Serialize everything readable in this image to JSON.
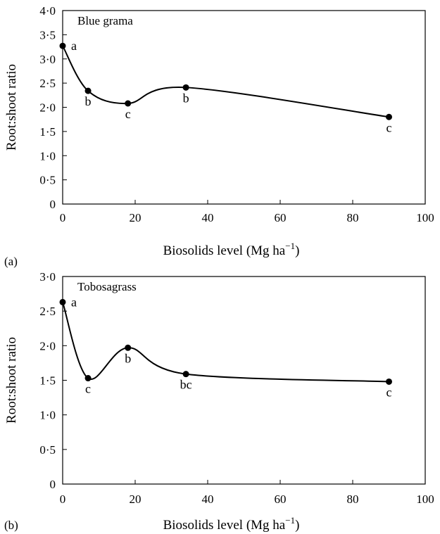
{
  "chart_data": [
    {
      "type": "line",
      "panel_label": "(a)",
      "title": "Blue grama",
      "xlabel": "Biosolids level (Mg ha",
      "xlabel_sup": "−1",
      "xlabel_end": ")",
      "ylabel": "Root:shoot ratio",
      "xlim": [
        0,
        100
      ],
      "ylim": [
        0,
        4
      ],
      "xticks": [
        0,
        20,
        40,
        60,
        80,
        100
      ],
      "xtick_labels": [
        "0",
        "20",
        "40",
        "60",
        "80",
        "100"
      ],
      "yticks": [
        0,
        0.5,
        1,
        1.5,
        2,
        2.5,
        3,
        3.5,
        4
      ],
      "ytick_labels": [
        "0",
        "0·5",
        "1·0",
        "1·5",
        "2·0",
        "2·5",
        "3·0",
        "3·5",
        "4·0"
      ],
      "grid": false,
      "legend": "none",
      "points": [
        {
          "x": 0,
          "y": 3.27,
          "label": "a",
          "label_pos": "right"
        },
        {
          "x": 7,
          "y": 2.34,
          "label": "b",
          "label_pos": "below"
        },
        {
          "x": 18,
          "y": 2.08,
          "label": "c",
          "label_pos": "below"
        },
        {
          "x": 34,
          "y": 2.41,
          "label": "b",
          "label_pos": "below"
        },
        {
          "x": 90,
          "y": 1.8,
          "label": "c",
          "label_pos": "below"
        }
      ]
    },
    {
      "type": "line",
      "panel_label": "(b)",
      "title": "Tobosagrass",
      "xlabel": "Biosolids level (Mg ha",
      "xlabel_sup": "−1",
      "xlabel_end": ")",
      "ylabel": "Root:shoot ratio",
      "xlim": [
        0,
        100
      ],
      "ylim": [
        0,
        3
      ],
      "xticks": [
        0,
        20,
        40,
        60,
        80,
        100
      ],
      "xtick_labels": [
        "0",
        "20",
        "40",
        "60",
        "80",
        "100"
      ],
      "yticks": [
        0,
        0.5,
        1,
        1.5,
        2,
        2.5,
        3
      ],
      "ytick_labels": [
        "0",
        "0·5",
        "1·0",
        "1·5",
        "2·0",
        "2·5",
        "3·0"
      ],
      "grid": false,
      "legend": "none",
      "points": [
        {
          "x": 0,
          "y": 2.63,
          "label": "a",
          "label_pos": "right"
        },
        {
          "x": 7,
          "y": 1.53,
          "label": "c",
          "label_pos": "below"
        },
        {
          "x": 18,
          "y": 1.97,
          "label": "b",
          "label_pos": "below"
        },
        {
          "x": 34,
          "y": 1.59,
          "label": "bc",
          "label_pos": "below"
        },
        {
          "x": 90,
          "y": 1.48,
          "label": "c",
          "label_pos": "below"
        }
      ]
    }
  ]
}
